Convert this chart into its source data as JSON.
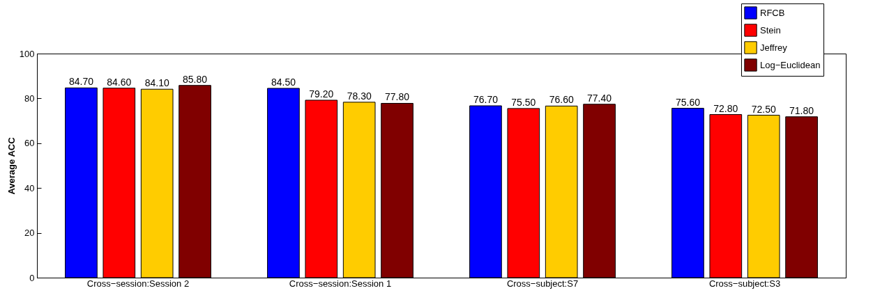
{
  "chart_data": {
    "type": "bar",
    "ylabel": "Average ACC",
    "categories": [
      "Cross−session:Session 2",
      "Cross−session:Session 1",
      "Cross−subject:S7",
      "Cross−subject:S3"
    ],
    "series": [
      {
        "name": "RFCB",
        "color": "#0000ff",
        "values": [
          84.7,
          84.5,
          76.7,
          75.6
        ],
        "value_labels": [
          "84.70",
          "84.50",
          "76.70",
          "75.60"
        ]
      },
      {
        "name": "Stein",
        "color": "#ff0000",
        "values": [
          84.6,
          79.2,
          75.5,
          72.8
        ],
        "value_labels": [
          "84.60",
          "79.20",
          "75.50",
          "72.80"
        ]
      },
      {
        "name": "Jeffrey",
        "color": "#ffcc00",
        "values": [
          84.1,
          78.3,
          76.6,
          72.5
        ],
        "value_labels": [
          "84.10",
          "78.30",
          "76.60",
          "72.50"
        ]
      },
      {
        "name": "Log−Euclidean",
        "color": "#800000",
        "values": [
          85.8,
          77.8,
          77.4,
          71.8
        ],
        "value_labels": [
          "85.80",
          "77.80",
          "77.40",
          "71.80"
        ]
      }
    ],
    "ylim": [
      0,
      100
    ],
    "yticks": [
      0,
      20,
      40,
      60,
      80,
      100
    ],
    "grid": false,
    "legend": "top right"
  }
}
